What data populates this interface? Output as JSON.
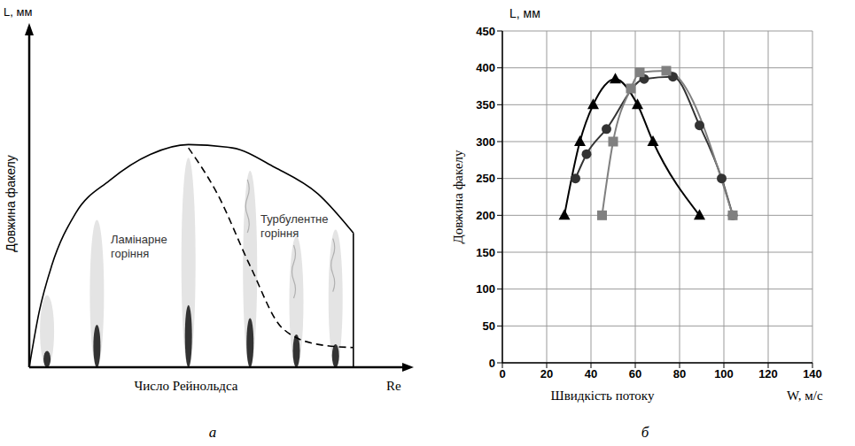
{
  "chart_data": [
    {
      "type": "line",
      "title": "а",
      "y_unit": "L, мм",
      "y_label": "Довжина факелу",
      "x_label": "Число Рейнольдса",
      "x_unit": "Re",
      "annotations": [
        "Ламінарне горіння",
        "Турбулентне горіння"
      ],
      "xlim": [
        0,
        100
      ],
      "ylim": [
        0,
        100
      ],
      "tick_labels": false,
      "grid": false,
      "series": [
        {
          "color": "#000000",
          "line_style": "solid",
          "x": [
            0,
            2.8,
            6.3,
            13,
            22.5,
            34,
            44.7,
            57,
            69,
            81,
            91
          ],
          "values": [
            0,
            17,
            31,
            47,
            57,
            65,
            68,
            67,
            61,
            53,
            41
          ]
        },
        {
          "color": "#000000",
          "line_style": "solid",
          "x": [
            91,
            91
          ],
          "values": [
            41,
            0
          ]
        },
        {
          "color": "#000000",
          "line_style": "dashed",
          "x": [
            44.7,
            52.8,
            62,
            71,
            81,
            91
          ],
          "values": [
            67,
            53,
            31,
            12,
            7,
            6
          ]
        }
      ]
    },
    {
      "type": "line",
      "title": "б",
      "y_unit": "L, мм",
      "y_label": "Довжина факелу",
      "x_label": "Швидкість потоку",
      "x_unit": "W, м/с",
      "xlim": [
        0,
        140
      ],
      "xticks": [
        0,
        20,
        40,
        60,
        80,
        100,
        120,
        140
      ],
      "ylim": [
        0,
        450
      ],
      "yticks": [
        0,
        50,
        100,
        150,
        200,
        250,
        300,
        350,
        400,
        450
      ],
      "grid": true,
      "series": [
        {
          "color": "#000000",
          "marker": "triangle",
          "line_style": "solid",
          "x": [
            28,
            35,
            41,
            51,
            61,
            68,
            89
          ],
          "values": [
            200,
            300,
            350,
            385,
            350,
            300,
            200
          ]
        },
        {
          "color": "#333333",
          "marker": "circle",
          "line_style": "solid",
          "x": [
            33,
            38,
            47,
            64,
            77,
            89,
            99,
            104
          ],
          "values": [
            250,
            283,
            317,
            385,
            388,
            322,
            250,
            200
          ]
        },
        {
          "color": "#808080",
          "marker": "square",
          "line_style": "solid",
          "x": [
            45,
            50,
            58,
            62,
            74,
            104
          ],
          "values": [
            200,
            300,
            372,
            394,
            396,
            200
          ]
        }
      ]
    }
  ]
}
